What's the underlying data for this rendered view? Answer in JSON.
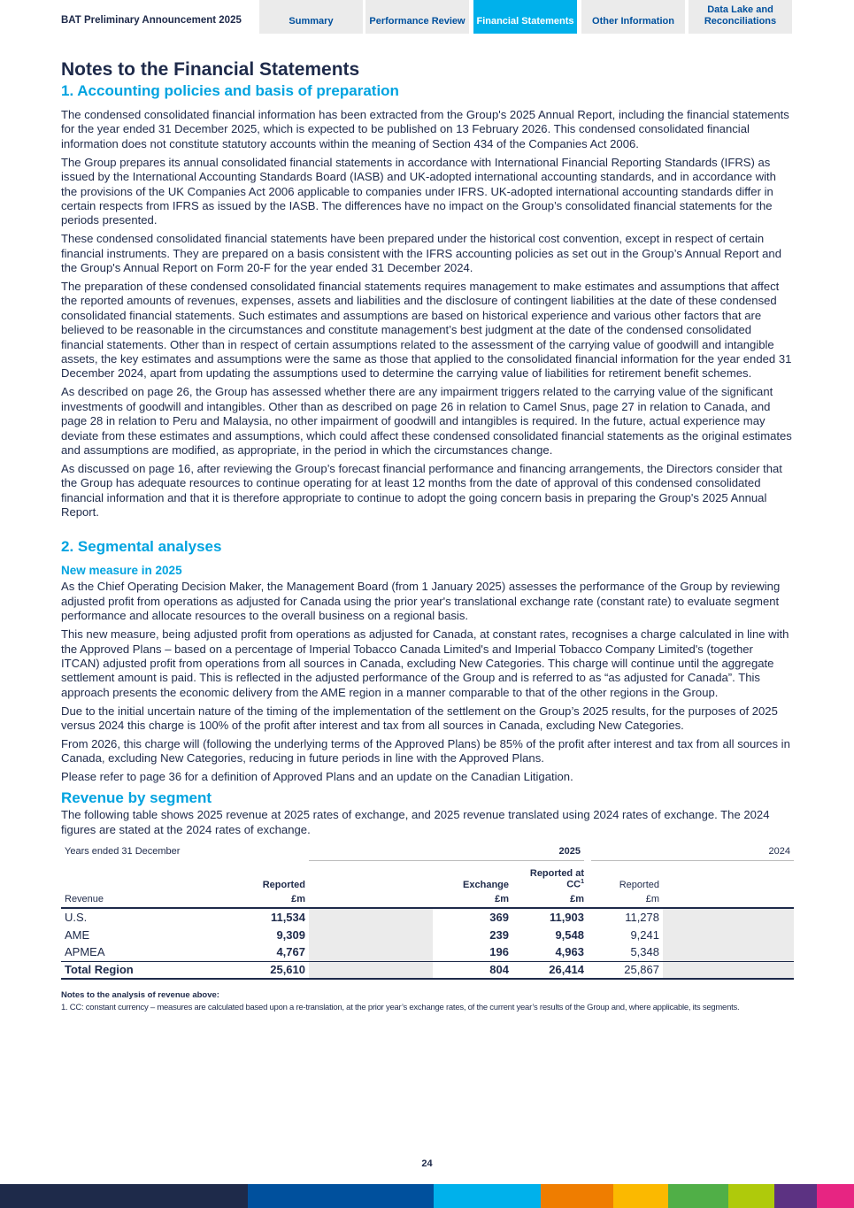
{
  "header": {
    "brand": "BAT Preliminary Announcement 2025",
    "tabs": [
      {
        "label": "Summary"
      },
      {
        "label": "Performance Review"
      },
      {
        "label": "Financial Statements",
        "active": true
      },
      {
        "label": "Other Information"
      },
      {
        "label": "Data Lake and Reconciliations"
      }
    ]
  },
  "title": "Notes to the Financial Statements",
  "s1": {
    "heading": "1. Accounting policies and basis of preparation",
    "paras": [
      "The condensed consolidated financial information has been extracted from the Group's 2025 Annual Report, including the financial statements for the year ended 31 December 2025, which is expected to be published on 13 February 2026. This condensed consolidated financial information does not constitute statutory accounts within the meaning of Section 434 of the Companies Act 2006.",
      "The Group prepares its annual consolidated financial statements in accordance with International Financial Reporting Standards (IFRS) as issued by the International Accounting Standards Board (IASB) and UK-adopted international accounting standards, and in accordance with the provisions of the UK Companies Act 2006 applicable to companies under IFRS. UK-adopted international accounting standards differ in certain respects from IFRS as issued by the IASB. The differences have no impact on the Group’s consolidated financial statements for the periods presented.",
      "These condensed consolidated financial statements have been prepared under the historical cost convention, except in respect of certain financial instruments. They are prepared on a basis consistent with the IFRS accounting policies as set out in the Group’s Annual Report and the Group's Annual Report on Form 20-F for the year ended 31 December 2024.",
      "The preparation of these condensed consolidated financial statements requires management to make estimates and assumptions that affect the reported amounts of revenues, expenses, assets and liabilities and the disclosure of contingent liabilities at the date of these condensed consolidated financial statements. Such estimates and assumptions are based on historical experience and various other factors that are believed to be reasonable in the circumstances and constitute management’s best judgment at the date of the condensed consolidated financial statements. Other than in respect of certain assumptions related to the assessment of the carrying value of goodwill and intangible assets, the key estimates and assumptions were the same as those that applied to the consolidated financial information for the year ended 31 December 2024, apart from updating the assumptions used to determine the carrying value of liabilities for retirement benefit schemes.",
      "As described on page 26, the Group has assessed whether there are any impairment triggers related to the carrying value of the significant investments of goodwill and intangibles. Other than as described on page 26 in relation to Camel Snus, page 27 in relation to Canada, and page 28 in relation to Peru and Malaysia, no other impairment of goodwill and intangibles is required. In the future, actual experience may deviate from these estimates and assumptions, which could affect these condensed consolidated financial statements as the original estimates and assumptions are modified, as appropriate, in the period in which the circumstances change.",
      "As discussed on page 16, after reviewing the Group’s forecast financial performance and financing arrangements, the Directors consider that the Group has adequate resources to continue operating for at least 12 months from the date of approval of this condensed consolidated financial information and that it is therefore appropriate to continue to adopt the going concern basis in preparing the Group's 2025 Annual Report."
    ]
  },
  "s2": {
    "heading": "2. Segmental analyses",
    "sub": "New measure in 2025",
    "paras": [
      "As the Chief Operating Decision Maker, the Management Board (from 1 January 2025) assesses the performance of the Group by reviewing adjusted profit from operations as adjusted for Canada using the prior year's translational exchange rate (constant rate) to evaluate segment performance and allocate resources to the overall business on a regional basis.",
      "This new measure, being adjusted profit from operations as adjusted for Canada, at constant rates, recognises a charge calculated in line with the Approved Plans – based on a percentage of Imperial Tobacco Canada Limited's and Imperial Tobacco Company Limited's (together ITCAN) adjusted profit from operations from all sources in Canada, excluding New Categories. This charge will continue until the aggregate settlement amount is paid. This is reflected in the adjusted performance of the Group and is referred to as “as adjusted for Canada”. This approach presents the economic delivery from the AME region in a manner comparable to that of the other regions in the Group.",
      "Due to the initial uncertain nature of the timing of the implementation of the settlement on the Group’s 2025 results, for the purposes of 2025 versus 2024 this charge is 100% of the profit after interest and tax from all sources in Canada, excluding New Categories.",
      "From 2026, this charge will (following the underlying terms of the Approved Plans) be 85% of the profit after interest and tax from all sources in Canada, excluding New Categories, reducing in future periods in line with the Approved Plans.",
      "Please refer to page 36 for a definition of Approved Plans and an update on the Canadian Litigation."
    ]
  },
  "rev": {
    "heading": "Revenue by segment",
    "intro": "The following table shows 2025 revenue at 2025 rates of exchange, and 2025 revenue translated using 2024 rates of exchange. The 2024 figures are stated at the 2024 rates of exchange.",
    "years_label": "Years ended 31 December",
    "y2025": "2025",
    "y2024": "2024",
    "cols": [
      "Reported",
      "Exchange",
      "Reported at CC",
      "Reported"
    ],
    "sup": "1",
    "row_label": "Revenue",
    "unit": "£m",
    "rows": [
      [
        "U.S.",
        "11,534",
        "369",
        "11,903",
        "11,278"
      ],
      [
        "AME",
        "9,309",
        "239",
        "9,548",
        "9,241"
      ],
      [
        "APMEA",
        "4,767",
        "196",
        "4,963",
        "5,348"
      ]
    ],
    "total": [
      "Total Region",
      "25,610",
      "804",
      "26,414",
      "25,867"
    ],
    "notes_title": "Notes to the analysis of revenue above:",
    "note1": "1.    CC: constant currency – measures are calculated based upon a re-translation, at the prior year’s exchange rates, of the current year’s results of the Group and, where applicable, its segments."
  },
  "page_number": "24",
  "colors": [
    "#1e2a4a",
    "#00509d",
    "#00b1eb",
    "#ef7d00",
    "#fbb900",
    "#50af47",
    "#afca0b",
    "#5c3282",
    "#e72582"
  ]
}
